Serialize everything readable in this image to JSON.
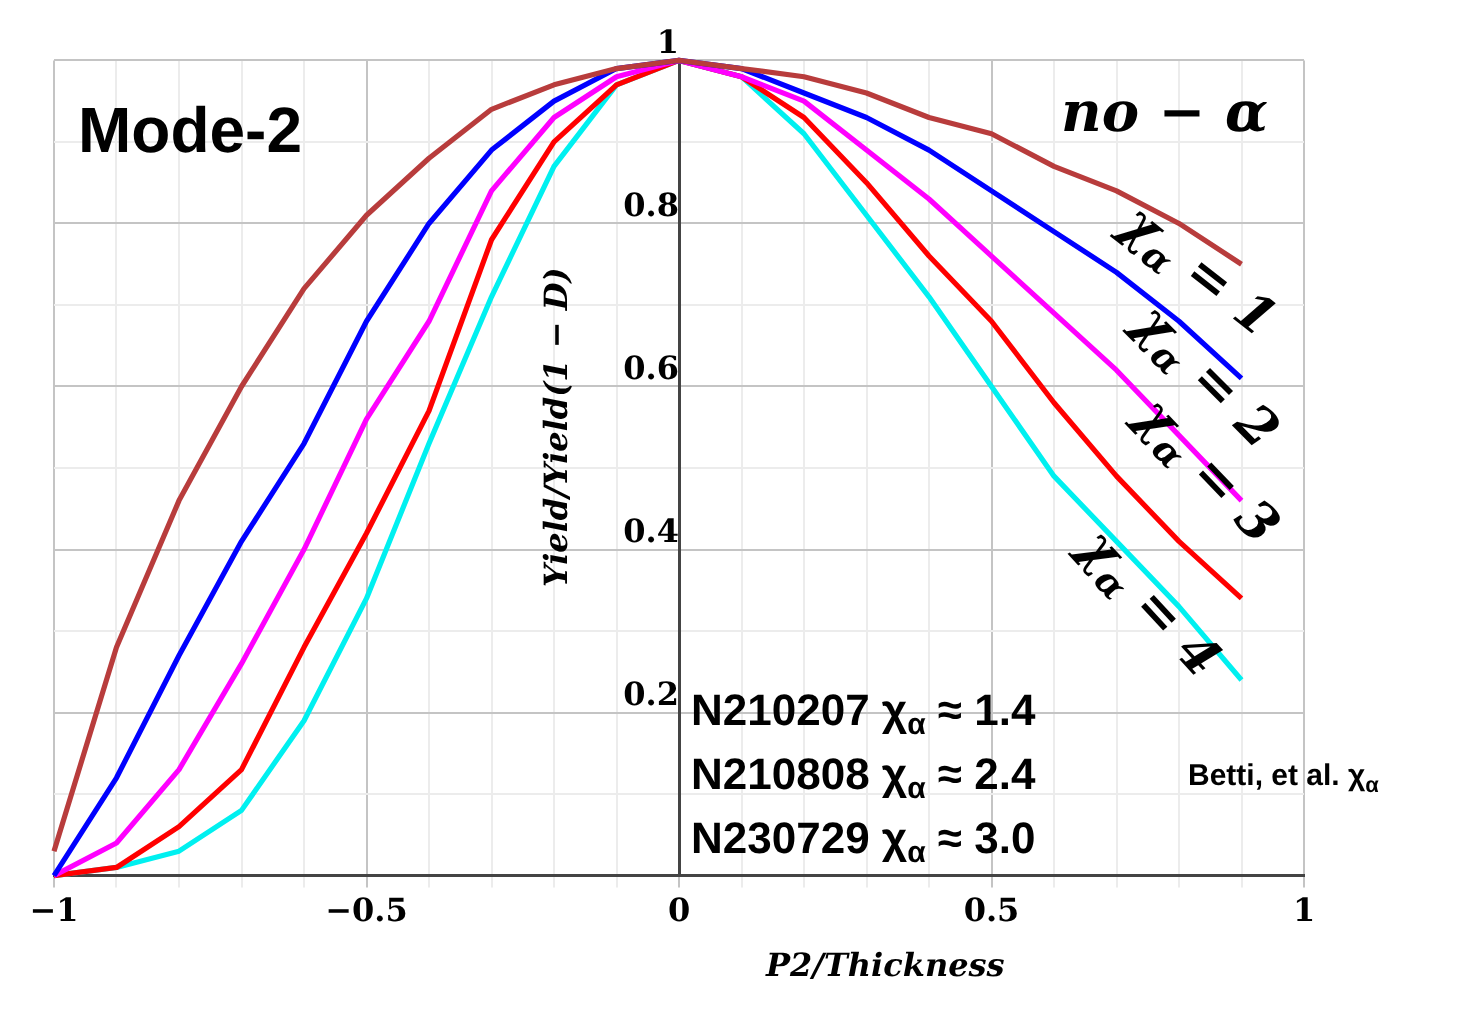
{
  "chart_data": {
    "type": "line",
    "title": "Mode-2",
    "xlabel": "P2/Thickness",
    "ylabel": "Yield/Yield(1 − D)",
    "x": [
      -1,
      -0.9,
      -0.8,
      -0.7,
      -0.6,
      -0.5,
      -0.4,
      -0.3,
      -0.2,
      -0.1,
      0,
      0.1,
      0.2,
      0.3,
      0.4,
      0.5,
      0.6,
      0.7,
      0.8,
      0.9
    ],
    "series": [
      {
        "name": "no − α",
        "color": "#b83c3c",
        "values": [
          0.03,
          0.28,
          0.46,
          0.6,
          0.72,
          0.81,
          0.88,
          0.94,
          0.97,
          0.99,
          1,
          0.99,
          0.98,
          0.96,
          0.93,
          0.91,
          0.87,
          0.84,
          0.8,
          0.75
        ]
      },
      {
        "name": "χ$_{α}$ = 1",
        "color": "#0000ff",
        "values": [
          0,
          0.12,
          0.27,
          0.41,
          0.53,
          0.68,
          0.8,
          0.89,
          0.95,
          0.99,
          1,
          0.99,
          0.96,
          0.93,
          0.89,
          0.84,
          0.79,
          0.74,
          0.68,
          0.61
        ]
      },
      {
        "name": "χ$_{α}$ = 2",
        "color": "#ff00ff",
        "values": [
          0,
          0.04,
          0.13,
          0.26,
          0.4,
          0.56,
          0.68,
          0.84,
          0.93,
          0.98,
          1,
          0.98,
          0.95,
          0.89,
          0.83,
          0.76,
          0.69,
          0.62,
          0.54,
          0.46
        ]
      },
      {
        "name": "χ$_{α}$ = 3",
        "color": "#ff0000",
        "values": [
          0,
          0.01,
          0.06,
          0.13,
          0.28,
          0.42,
          0.57,
          0.78,
          0.9,
          0.97,
          1,
          0.98,
          0.93,
          0.85,
          0.76,
          0.68,
          0.58,
          0.49,
          0.41,
          0.34
        ]
      },
      {
        "name": "χ$_{α}$ = 4",
        "color": "#00f0f0",
        "values": [
          0,
          0.01,
          0.03,
          0.08,
          0.19,
          0.34,
          0.53,
          0.71,
          0.87,
          0.97,
          1,
          0.98,
          0.91,
          0.81,
          0.71,
          0.6,
          0.49,
          0.41,
          0.33,
          0.24
        ]
      }
    ],
    "xlim": [
      -1,
      1
    ],
    "ylim": [
      0,
      1
    ],
    "xticks": [
      {
        "value": -1,
        "label": "−1"
      },
      {
        "value": -0.9,
        "label": null
      },
      {
        "value": -0.8,
        "label": null
      },
      {
        "value": -0.7,
        "label": null
      },
      {
        "value": -0.6,
        "label": null
      },
      {
        "value": -0.5,
        "label": "−0.5"
      },
      {
        "value": -0.4,
        "label": null
      },
      {
        "value": -0.3,
        "label": null
      },
      {
        "value": -0.2,
        "label": null
      },
      {
        "value": -0.1,
        "label": null
      },
      0,
      {
        "value": 0.1,
        "label": null
      },
      {
        "value": 0.2,
        "label": null
      },
      {
        "value": 0.3,
        "label": null
      },
      {
        "value": 0.4,
        "label": null
      },
      0.5,
      {
        "value": 0.6,
        "label": null
      },
      {
        "value": 0.7,
        "label": null
      },
      {
        "value": 0.8,
        "label": null
      },
      {
        "value": 0.9,
        "label": null
      },
      1
    ],
    "yticks": [
      {
        "value": 0,
        "label": null
      },
      {
        "value": 0.1,
        "label": null
      },
      0.2,
      {
        "value": 0.3,
        "label": null
      },
      0.4,
      {
        "value": 0.5,
        "label": null
      },
      0.6,
      {
        "value": 0.7,
        "label": null
      },
      0.8,
      {
        "value": 0.9,
        "label": null
      },
      1
    ],
    "annotations": [
      "N210207 χ$_{α}$ ≈ 1.4",
      "N210808 χ$_{α}$ ≈ 2.4",
      "N230729 χ$_{α}$ ≈ 3.0",
      "Betti, et al. χ$_{α}$"
    ],
    "grid": true,
    "legend": false,
    "marker": "none",
    "line_style": "solid"
  }
}
